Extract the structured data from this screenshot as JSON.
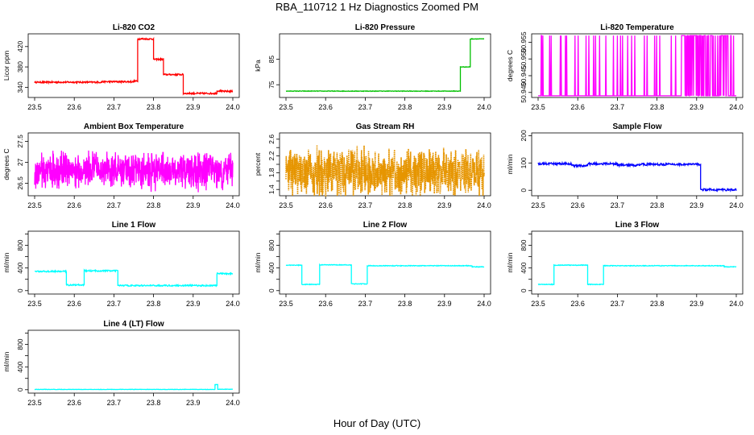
{
  "figure": {
    "title": "RBA_110712  1 Hz Diagnostics Zoomed PM",
    "xlabel": "Hour of Day (UTC)"
  },
  "chart_data": [
    {
      "type": "line",
      "title": "Li-820 CO2",
      "ylabel": "Licor ppm",
      "color": "#ff0000",
      "xlim": [
        23.5,
        24.0
      ],
      "ylim": [
        320,
        445
      ],
      "xticks": [
        "23.5",
        "23.6",
        "23.7",
        "23.8",
        "23.9",
        "24.0"
      ],
      "yticks": [
        340,
        380,
        420
      ],
      "segments": [
        [
          23.5,
          23.67,
          350
        ],
        [
          23.67,
          23.75,
          351
        ],
        [
          23.75,
          23.76,
          352
        ],
        [
          23.76,
          23.8,
          435
        ],
        [
          23.8,
          23.825,
          395
        ],
        [
          23.825,
          23.875,
          365
        ],
        [
          23.875,
          23.96,
          328
        ],
        [
          23.96,
          23.97,
          333
        ],
        [
          23.97,
          24.0,
          332
        ]
      ],
      "noise": 1.5
    },
    {
      "type": "line",
      "title": "Li-820 Pressure",
      "ylabel": "kPa",
      "color": "#00c000",
      "xlim": [
        23.5,
        24.0
      ],
      "ylim": [
        70,
        95
      ],
      "xticks": [
        "23.5",
        "23.6",
        "23.7",
        "23.8",
        "23.9",
        "24.0"
      ],
      "yticks": [
        75,
        85
      ],
      "segments": [
        [
          23.5,
          23.94,
          72.5
        ],
        [
          23.94,
          23.965,
          82
        ],
        [
          23.965,
          24.0,
          93
        ]
      ],
      "noise": 0.1
    },
    {
      "type": "line",
      "title": "Li-820 Temperature",
      "ylabel": "degrees C",
      "color": "#ff00ff",
      "xlim": [
        23.5,
        24.0
      ],
      "ylim": [
        50.9385,
        50.9575
      ],
      "xticks": [
        "23.5",
        "23.6",
        "23.7",
        "23.8",
        "23.9",
        "24.0"
      ],
      "yticks": [
        50.94,
        50.945,
        50.95,
        50.955
      ],
      "ytick_labels": [
        "50.940",
        "50.945",
        "50.950",
        "50.955"
      ],
      "base": 50.939,
      "spike": 50.957,
      "spikes": 140
    },
    {
      "type": "line",
      "title": "Ambient Box Temperature",
      "ylabel": "degrees C",
      "color": "#ff00ff",
      "xlim": [
        23.5,
        24.0
      ],
      "ylim": [
        26.2,
        27.7
      ],
      "xticks": [
        "23.5",
        "23.6",
        "23.7",
        "23.8",
        "23.9",
        "24.0"
      ],
      "yticks": [
        26.5,
        27.0,
        27.5
      ],
      "center": 26.8,
      "noise": 0.35
    },
    {
      "type": "scatter",
      "title": "Gas Stream RH",
      "ylabel": "percent",
      "color": "#e69500",
      "xlim": [
        23.5,
        24.0
      ],
      "ylim": [
        1.25,
        2.75
      ],
      "xticks": [
        "23.5",
        "23.6",
        "23.7",
        "23.8",
        "23.9",
        "24.0"
      ],
      "yticks": [
        1.4,
        1.6,
        1.8,
        2.0,
        2.2,
        2.4,
        2.6
      ],
      "ytick_labels": [
        "1.4",
        "",
        "1.8",
        "",
        "2.2",
        "",
        "2.6"
      ],
      "center": 1.8,
      "noise": 0.45
    },
    {
      "type": "line",
      "title": "Sample Flow",
      "ylabel": "ml/min",
      "color": "#0000ff",
      "xlim": [
        23.5,
        24.0
      ],
      "ylim": [
        -20,
        210
      ],
      "xticks": [
        "23.5",
        "23.6",
        "23.7",
        "23.8",
        "23.9",
        "24.0"
      ],
      "yticks": [
        0,
        100,
        200
      ],
      "segments": [
        [
          23.5,
          23.585,
          97
        ],
        [
          23.585,
          23.625,
          90
        ],
        [
          23.625,
          23.7,
          97
        ],
        [
          23.7,
          23.75,
          92
        ],
        [
          23.75,
          23.91,
          95
        ],
        [
          23.91,
          24.0,
          2
        ]
      ],
      "noise": 4
    },
    {
      "type": "line",
      "title": "Line 1 Flow",
      "ylabel": "ml/min",
      "color": "#00ffff",
      "xlim": [
        23.5,
        24.0
      ],
      "ylim": [
        -60,
        1050
      ],
      "xticks": [
        "23.5",
        "23.6",
        "23.7",
        "23.8",
        "23.9",
        "24.0"
      ],
      "yticks": [
        0,
        200,
        400,
        600,
        800,
        1000
      ],
      "ytick_labels": [
        "0",
        "",
        "400",
        "",
        "800",
        ""
      ],
      "segments": [
        [
          23.5,
          23.58,
          340
        ],
        [
          23.58,
          23.625,
          100
        ],
        [
          23.625,
          23.71,
          350
        ],
        [
          23.71,
          23.96,
          90
        ],
        [
          23.96,
          24.0,
          300
        ]
      ],
      "noise": 12
    },
    {
      "type": "line",
      "title": "Line 2 Flow",
      "ylabel": "ml/min",
      "color": "#00ffff",
      "xlim": [
        23.5,
        24.0
      ],
      "ylim": [
        -60,
        1050
      ],
      "xticks": [
        "23.5",
        "23.6",
        "23.7",
        "23.8",
        "23.9",
        "24.0"
      ],
      "yticks": [
        0,
        200,
        400,
        600,
        800,
        1000
      ],
      "ytick_labels": [
        "0",
        "",
        "400",
        "",
        "800",
        ""
      ],
      "segments": [
        [
          23.5,
          23.54,
          450
        ],
        [
          23.54,
          23.585,
          110
        ],
        [
          23.585,
          23.665,
          455
        ],
        [
          23.665,
          23.705,
          120
        ],
        [
          23.705,
          23.97,
          440
        ],
        [
          23.97,
          24.0,
          420
        ]
      ],
      "noise": 6
    },
    {
      "type": "line",
      "title": "Line 3 Flow",
      "ylabel": "ml/min",
      "color": "#00ffff",
      "xlim": [
        23.5,
        24.0
      ],
      "ylim": [
        -60,
        1050
      ],
      "xticks": [
        "23.5",
        "23.6",
        "23.7",
        "23.8",
        "23.9",
        "24.0"
      ],
      "yticks": [
        0,
        200,
        400,
        600,
        800,
        1000
      ],
      "ytick_labels": [
        "0",
        "",
        "400",
        "",
        "800",
        ""
      ],
      "segments": [
        [
          23.5,
          23.54,
          110
        ],
        [
          23.54,
          23.625,
          450
        ],
        [
          23.625,
          23.665,
          110
        ],
        [
          23.665,
          23.97,
          440
        ],
        [
          23.97,
          24.0,
          420
        ]
      ],
      "noise": 6
    },
    {
      "type": "line",
      "title": "Line 4 (LT) Flow",
      "ylabel": "ml/min",
      "color": "#00ffff",
      "xlim": [
        23.5,
        24.0
      ],
      "ylim": [
        -60,
        1050
      ],
      "xticks": [
        "23.5",
        "23.6",
        "23.7",
        "23.8",
        "23.9",
        "24.0"
      ],
      "yticks": [
        0,
        200,
        400,
        600,
        800,
        1000
      ],
      "ytick_labels": [
        "0",
        "",
        "400",
        "",
        "800",
        ""
      ],
      "segments": [
        [
          23.5,
          23.955,
          5
        ],
        [
          23.955,
          23.962,
          90
        ],
        [
          23.962,
          24.0,
          8
        ]
      ],
      "noise": 3
    }
  ]
}
